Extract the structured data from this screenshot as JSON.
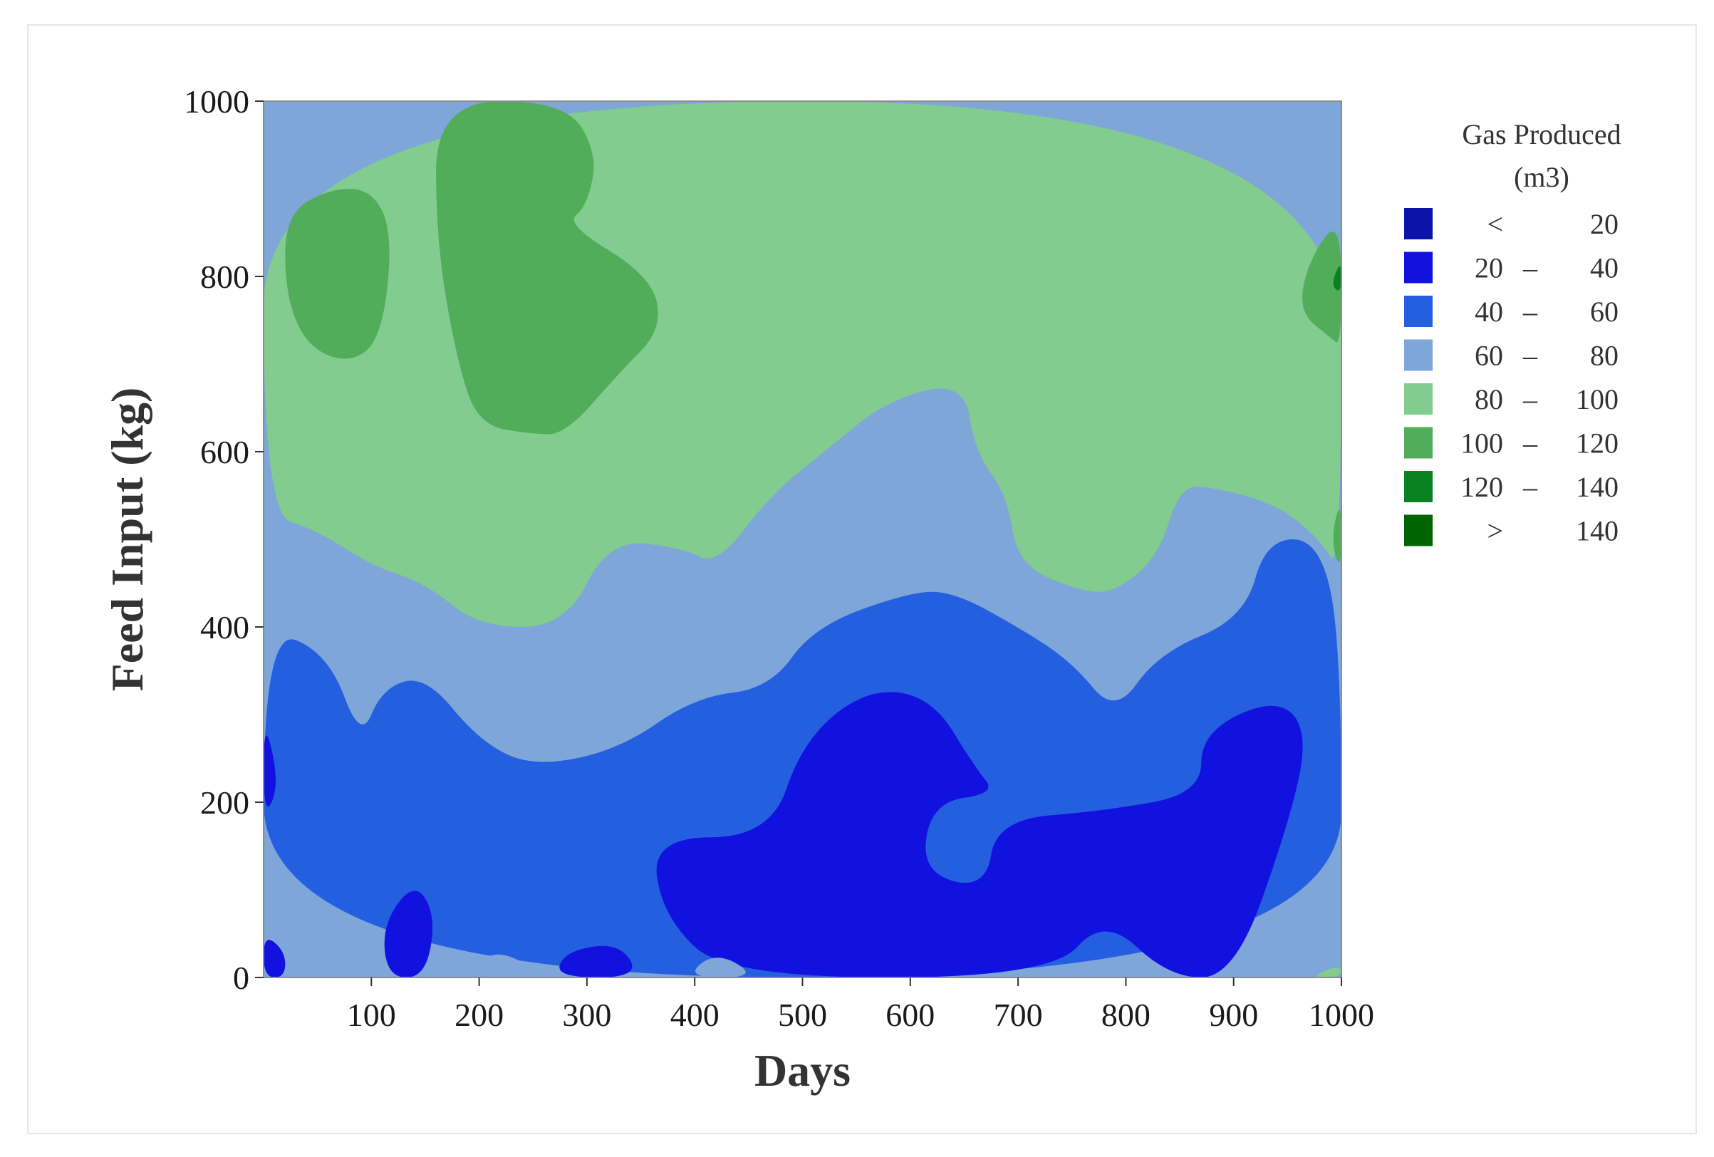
{
  "chart_data": {
    "type": "contour",
    "xlabel": "Days",
    "ylabel": "Feed Input (kg)",
    "xlim": [
      0,
      1000
    ],
    "ylim": [
      0,
      1000
    ],
    "x_ticks": [
      "100",
      "200",
      "300",
      "400",
      "500",
      "600",
      "700",
      "800",
      "900",
      "1000"
    ],
    "y_ticks": [
      "0",
      "200",
      "400",
      "600",
      "800",
      "1000"
    ],
    "legend": {
      "title_line1": "Gas Produced",
      "title_line2": "(m3)",
      "placement": "right",
      "entries": [
        {
          "low": "<",
          "sep": "",
          "high": "20",
          "color": "#0b14a8"
        },
        {
          "low": "20",
          "sep": "–",
          "high": "40",
          "color": "#1212e0"
        },
        {
          "low": "40",
          "sep": "–",
          "high": "60",
          "color": "#245fe0"
        },
        {
          "low": "60",
          "sep": "–",
          "high": "80",
          "color": "#7ea6d8"
        },
        {
          "low": "80",
          "sep": "–",
          "high": "100",
          "color": "#82cc90"
        },
        {
          "low": "100",
          "sep": "–",
          "high": "120",
          "color": "#52ad5a"
        },
        {
          "low": "120",
          "sep": "–",
          "high": "140",
          "color": "#0a8224"
        },
        {
          "low": ">",
          "sep": "",
          "high": "140",
          "color": "#006400"
        }
      ]
    },
    "regions": [
      {
        "level": "40-60",
        "points": [
          [
            0,
            400
          ],
          [
            60,
            370
          ],
          [
            90,
            270
          ],
          [
            110,
            330
          ],
          [
            150,
            345
          ],
          [
            200,
            270
          ],
          [
            250,
            240
          ],
          [
            330,
            260
          ],
          [
            400,
            320
          ],
          [
            470,
            330
          ],
          [
            510,
            400
          ],
          [
            600,
            440
          ],
          [
            640,
            440
          ],
          [
            700,
            400
          ],
          [
            750,
            360
          ],
          [
            790,
            300
          ],
          [
            830,
            370
          ],
          [
            910,
            410
          ],
          [
            930,
            500
          ],
          [
            980,
            500
          ],
          [
            1000,
            380
          ],
          [
            1000,
            0
          ],
          [
            0,
            0
          ]
        ]
      },
      {
        "level": "20-40",
        "points": [
          [
            470,
            160
          ],
          [
            500,
            270
          ],
          [
            560,
            330
          ],
          [
            620,
            320
          ],
          [
            660,
            240
          ],
          [
            680,
            210
          ],
          [
            620,
            200
          ],
          [
            610,
            120
          ],
          [
            670,
            100
          ],
          [
            680,
            180
          ],
          [
            780,
            190
          ],
          [
            870,
            210
          ],
          [
            870,
            280
          ],
          [
            940,
            320
          ],
          [
            970,
            280
          ],
          [
            950,
            170
          ],
          [
            900,
            0
          ],
          [
            840,
            0
          ],
          [
            780,
            70
          ],
          [
            730,
            0
          ],
          [
            430,
            0
          ],
          [
            370,
            70
          ],
          [
            360,
            160
          ]
        ]
      },
      {
        "level": "20-40",
        "points": [
          [
            0,
            300
          ],
          [
            15,
            220
          ],
          [
            0,
            180
          ]
        ]
      },
      {
        "level": "20-40",
        "points": [
          [
            0,
            50
          ],
          [
            20,
            30
          ],
          [
            20,
            0
          ],
          [
            0,
            0
          ]
        ]
      },
      {
        "level": "20-40",
        "points": [
          [
            110,
            60
          ],
          [
            140,
            110
          ],
          [
            160,
            70
          ],
          [
            150,
            0
          ],
          [
            115,
            0
          ]
        ]
      },
      {
        "level": "20-40",
        "points": [
          [
            280,
            30
          ],
          [
            330,
            40
          ],
          [
            350,
            0
          ],
          [
            270,
            0
          ]
        ]
      },
      {
        "level": "60-80",
        "points": [
          [
            190,
            0
          ],
          [
            210,
            30
          ],
          [
            240,
            20
          ],
          [
            250,
            0
          ]
        ]
      },
      {
        "level": "60-80",
        "points": [
          [
            390,
            0
          ],
          [
            420,
            30
          ],
          [
            460,
            0
          ]
        ]
      },
      {
        "level": "60-80",
        "points": [
          [
            900,
            0
          ],
          [
            940,
            30
          ],
          [
            1000,
            50
          ],
          [
            1000,
            0
          ]
        ]
      },
      {
        "level": "80-100",
        "points": [
          [
            970,
            0
          ],
          [
            1000,
            15
          ],
          [
            1000,
            0
          ]
        ]
      }
    ],
    "background_level": "60-80",
    "upper_level": "80-100",
    "upper_boundary": [
      [
        0,
        530
      ],
      [
        50,
        510
      ],
      [
        100,
        470
      ],
      [
        150,
        450
      ],
      [
        200,
        400
      ],
      [
        280,
        400
      ],
      [
        320,
        500
      ],
      [
        390,
        490
      ],
      [
        420,
        470
      ],
      [
        470,
        550
      ],
      [
        520,
        600
      ],
      [
        580,
        660
      ],
      [
        650,
        680
      ],
      [
        660,
        600
      ],
      [
        690,
        550
      ],
      [
        700,
        470
      ],
      [
        760,
        440
      ],
      [
        790,
        440
      ],
      [
        830,
        480
      ],
      [
        850,
        560
      ],
      [
        880,
        560
      ],
      [
        940,
        540
      ],
      [
        980,
        500
      ],
      [
        1000,
        460
      ],
      [
        1000,
        1000
      ],
      [
        0,
        1000
      ]
    ],
    "high_regions": [
      {
        "level": "100-120",
        "points": [
          [
            20,
            870
          ],
          [
            60,
            900
          ],
          [
            100,
            900
          ],
          [
            120,
            850
          ],
          [
            110,
            730
          ],
          [
            80,
            700
          ],
          [
            40,
            720
          ],
          [
            20,
            780
          ]
        ]
      },
      {
        "level": "100-120",
        "points": [
          [
            160,
            1000
          ],
          [
            280,
            1000
          ],
          [
            310,
            940
          ],
          [
            300,
            880
          ],
          [
            280,
            860
          ],
          [
            360,
            800
          ],
          [
            370,
            740
          ],
          [
            330,
            690
          ],
          [
            280,
            620
          ],
          [
            250,
            620
          ],
          [
            200,
            630
          ],
          [
            180,
            700
          ],
          [
            160,
            840
          ]
        ]
      },
      {
        "level": "100-120",
        "points": [
          [
            1000,
            870
          ],
          [
            970,
            820
          ],
          [
            960,
            760
          ],
          [
            990,
            730
          ],
          [
            1000,
            720
          ]
        ]
      },
      {
        "level": "100-120",
        "points": [
          [
            1000,
            550
          ],
          [
            990,
            500
          ],
          [
            1000,
            460
          ]
        ]
      },
      {
        "level": "120-140",
        "points": [
          [
            1000,
            820
          ],
          [
            990,
            790
          ],
          [
            1000,
            780
          ]
        ]
      }
    ]
  }
}
